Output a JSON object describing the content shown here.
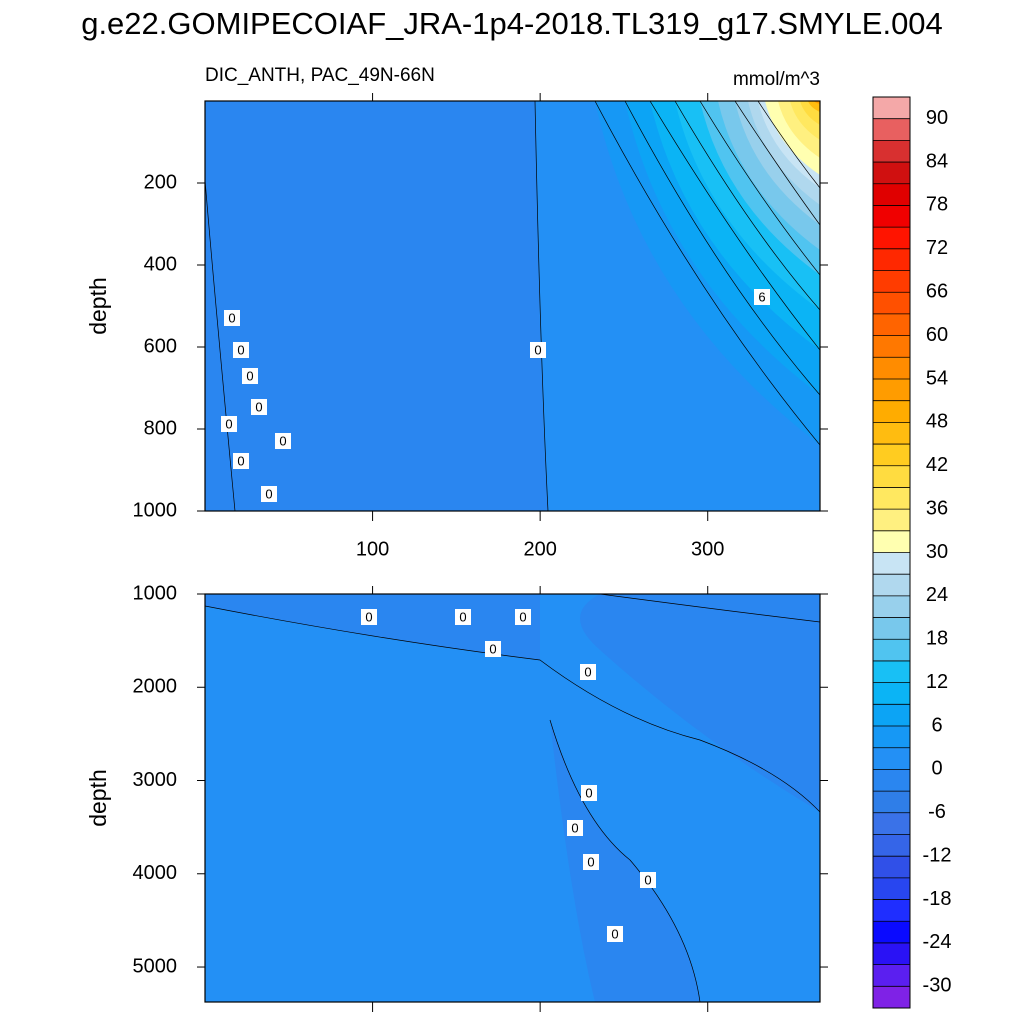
{
  "title": "g.e22.GOMIPECOIAF_JRA-1p4-2018.TL319_g17.SMYLE.004",
  "chart_data": [
    {
      "type": "contour",
      "title": "DIC_ANTH, PAC_49N-66N",
      "units": "mmol/m^3",
      "ylabel": "depth",
      "xlim": [
        0,
        367
      ],
      "ylim": [
        0,
        1000
      ],
      "xticks": [
        100,
        200,
        300
      ],
      "yticks": [
        200,
        400,
        600,
        800,
        1000
      ],
      "contour_labels": [
        0,
        0,
        0,
        0,
        0,
        0,
        0,
        0,
        0,
        6
      ]
    },
    {
      "type": "contour",
      "ylabel": "depth",
      "xlim": [
        0,
        367
      ],
      "ylim": [
        1000,
        5375
      ],
      "yticks": [
        1000,
        2000,
        3000,
        4000,
        5000
      ],
      "contour_labels": [
        0,
        0,
        0,
        0,
        0,
        0,
        0,
        0,
        0,
        0
      ]
    },
    {
      "type": "colorbar",
      "levels": [
        -30,
        -27,
        -24,
        -21,
        -18,
        -15,
        -12,
        -9,
        -6,
        -3,
        0,
        3,
        6,
        9,
        12,
        15,
        18,
        21,
        24,
        27,
        30,
        33,
        36,
        39,
        42,
        45,
        48,
        51,
        54,
        57,
        60,
        63,
        66,
        69,
        72,
        75,
        78,
        81,
        84,
        87,
        90
      ],
      "colors": [
        "#7f22e6",
        "#5b1ff0",
        "#2a12f5",
        "#0a0aff",
        "#1f2eff",
        "#2846f0",
        "#3050e8",
        "#3565e8",
        "#3a72e8",
        "#2f7ee8",
        "#2a86f0",
        "#2390f5",
        "#1698f5",
        "#0ca4f5",
        "#0bb4f5",
        "#18c0f5",
        "#50c4f0",
        "#78c8ec",
        "#98d0ec",
        "#b0d8ee",
        "#c8e4f4",
        "#ffffb0",
        "#fff080",
        "#ffe860",
        "#ffdc40",
        "#ffcc20",
        "#ffbc10",
        "#ffac00",
        "#ff9c00",
        "#ff8c00",
        "#ff7800",
        "#ff6400",
        "#ff5000",
        "#ff3c00",
        "#ff2800",
        "#ff1400",
        "#f00000",
        "#e00000",
        "#d01010",
        "#d83030",
        "#e86060",
        "#f4a8a8"
      ]
    }
  ]
}
